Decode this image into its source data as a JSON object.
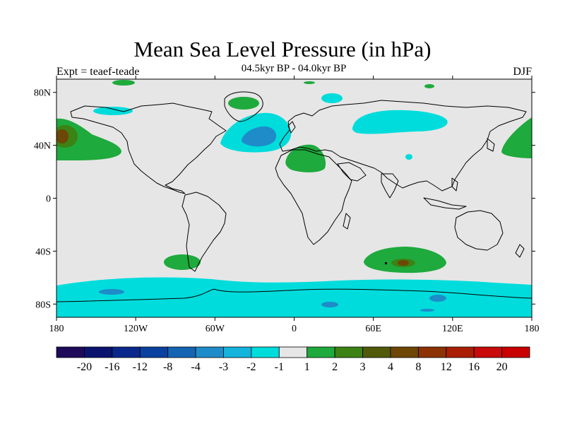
{
  "figure": {
    "title": "Mean Sea Level Pressure (in hPa)",
    "left_string": "Expt = teaef-teade",
    "center_string": "04.5kyr BP - 04.0kyr BP",
    "right_string": "DJF"
  },
  "axes": {
    "lat_ticks": [
      "80N",
      "40N",
      "0",
      "40S",
      "80S"
    ],
    "lon_ticks": [
      "180",
      "120W",
      "60W",
      "0",
      "60E",
      "120E",
      "180"
    ]
  },
  "colorbar": {
    "colors": [
      "#1e0a5a",
      "#0a146e",
      "#0a288c",
      "#0a40a0",
      "#1464b4",
      "#1e8cc8",
      "#14b4dc",
      "#00dcdc",
      "#e6e6e6",
      "#1eaa3c",
      "#3c8214",
      "#505a0a",
      "#6e4605",
      "#8c3205",
      "#aa1e05",
      "#c80a0a",
      "#c80000"
    ],
    "labels": [
      "-20",
      "-16",
      "-12",
      "-8",
      "-4",
      "-3",
      "-2",
      "-1",
      "1",
      "2",
      "3",
      "4",
      "8",
      "12",
      "16",
      "20"
    ]
  },
  "colors": {
    "land_bg": "#e6e6e6",
    "cyan": "#00dcdc",
    "blue": "#1e8cc8",
    "green": "#1eaa3c",
    "olive": "#3c8214",
    "brown": "#6e4605"
  }
}
